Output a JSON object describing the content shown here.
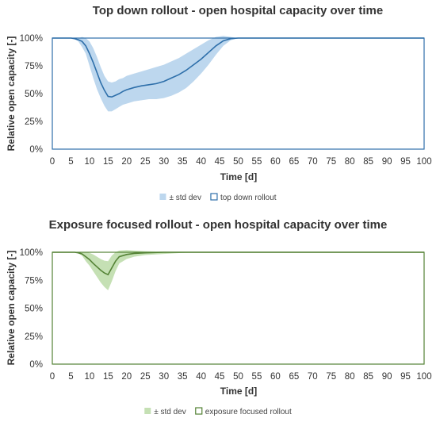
{
  "chart_data": [
    {
      "type": "area",
      "title": "Top down rollout - open hospital capacity over time",
      "xlabel": "Time [d]",
      "ylabel": "Relative open capacity [-]",
      "xlim": [
        0,
        100
      ],
      "ylim": [
        0,
        100
      ],
      "x_ticks": [
        "0",
        "5",
        "10",
        "15",
        "20",
        "25",
        "30",
        "35",
        "40",
        "45",
        "50",
        "55",
        "60",
        "65",
        "70",
        "75",
        "80",
        "85",
        "90",
        "95",
        "100"
      ],
      "y_ticks": [
        "0%",
        "25%",
        "50%",
        "75%",
        "100%"
      ],
      "grid": false,
      "legend_position": "bottom",
      "colors": {
        "band": "#bdd7ee",
        "line": "#2e6faa",
        "frame": "#2e6faa"
      },
      "legend": [
        {
          "label": "± std dev",
          "kind": "band"
        },
        {
          "label": "top down rollout",
          "kind": "line"
        }
      ],
      "x": [
        0,
        5,
        6,
        7,
        8,
        9,
        10,
        11,
        12,
        13,
        14,
        15,
        16,
        17,
        18,
        19,
        20,
        22,
        24,
        26,
        28,
        30,
        32,
        34,
        36,
        38,
        40,
        42,
        44,
        46,
        48,
        50,
        100
      ],
      "mean": [
        100,
        100,
        99.5,
        98.5,
        97,
        93,
        86,
        78,
        69,
        60,
        53,
        47.5,
        47,
        48.5,
        50,
        52,
        53.5,
        55.5,
        57,
        58,
        59,
        61,
        64,
        67,
        71,
        76,
        81,
        87,
        93,
        97.5,
        99.5,
        100,
        100
      ],
      "upper": [
        100,
        100,
        100,
        100,
        101,
        100,
        97,
        91,
        83,
        74,
        66,
        61,
        60,
        61,
        63,
        64,
        66,
        68,
        70,
        72,
        74,
        76,
        79,
        82,
        86,
        90,
        94,
        98,
        101,
        102,
        101,
        100,
        100
      ],
      "lower": [
        100,
        100,
        99,
        97,
        92,
        86,
        75,
        64,
        54,
        46,
        39,
        34,
        34,
        36,
        38,
        40,
        41,
        43,
        44,
        45,
        45,
        46,
        48,
        51,
        55,
        61,
        68,
        76,
        85,
        93,
        98,
        100,
        100
      ]
    },
    {
      "type": "area",
      "title": "Exposure focused rollout - open hospital capacity over time",
      "xlabel": "Time [d]",
      "ylabel": "Relative open capacity [-]",
      "xlim": [
        0,
        100
      ],
      "ylim": [
        0,
        100
      ],
      "x_ticks": [
        "0",
        "5",
        "10",
        "15",
        "20",
        "25",
        "30",
        "35",
        "40",
        "45",
        "50",
        "55",
        "60",
        "65",
        "70",
        "75",
        "80",
        "85",
        "90",
        "95",
        "100"
      ],
      "y_ticks": [
        "0%",
        "25%",
        "50%",
        "75%",
        "100%"
      ],
      "grid": false,
      "legend_position": "bottom",
      "colors": {
        "band": "#c5e0b4",
        "line": "#548235",
        "frame": "#548235"
      },
      "legend": [
        {
          "label": "± std dev",
          "kind": "band"
        },
        {
          "label": "exposure focused rollout",
          "kind": "line"
        }
      ],
      "x": [
        0,
        6,
        7,
        8,
        9,
        10,
        11,
        12,
        13,
        14,
        15,
        16,
        17,
        18,
        20,
        22,
        25,
        30,
        35,
        40,
        45,
        100
      ],
      "mean": [
        100,
        100,
        99.5,
        98.5,
        96,
        93.5,
        90,
        87,
        84,
        81.5,
        80,
        86,
        92,
        96,
        98,
        99,
        99.5,
        100,
        100,
        100,
        100,
        100
      ],
      "upper": [
        100,
        100,
        100,
        100,
        100,
        99.5,
        98,
        96,
        94,
        92.5,
        92,
        97,
        100,
        101.5,
        102,
        101.5,
        101,
        100.5,
        100,
        100,
        100,
        100
      ],
      "lower": [
        100,
        100,
        99,
        97,
        92,
        88,
        83,
        78,
        73,
        69,
        66,
        74,
        83,
        90,
        94,
        96,
        97.5,
        98.5,
        99.5,
        100,
        100,
        100
      ]
    }
  ]
}
